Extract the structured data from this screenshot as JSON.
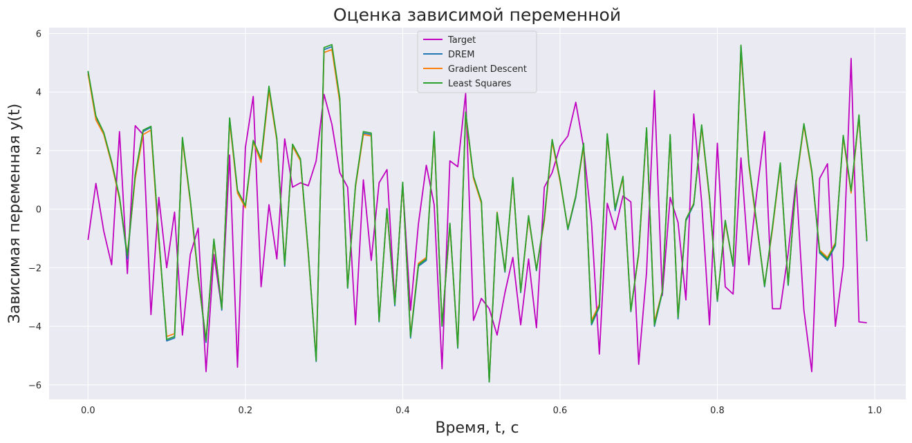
{
  "chart_data": {
    "type": "line",
    "title": "Оценка зависимой переменной",
    "xlabel": "Время, t, с",
    "ylabel": "Зависимая переменная y(t)",
    "xlim": [
      -0.0495,
      1.0395
    ],
    "ylim": [
      -6.5,
      6.2
    ],
    "xticks": [
      0.0,
      0.2,
      0.4,
      0.6,
      0.8,
      1.0
    ],
    "xtick_labels": [
      "0.0",
      "0.2",
      "0.4",
      "0.6",
      "0.8",
      "1.0"
    ],
    "yticks": [
      -6,
      -4,
      -2,
      0,
      2,
      4,
      6
    ],
    "ytick_labels": [
      "−6",
      "−4",
      "−2",
      "0",
      "2",
      "4",
      "6"
    ],
    "grid": true,
    "legend": "upper center",
    "x": [
      0.0,
      0.01,
      0.02,
      0.03,
      0.04,
      0.05,
      0.06,
      0.07,
      0.08,
      0.09,
      0.1,
      0.11,
      0.12,
      0.13,
      0.14,
      0.15,
      0.16,
      0.17,
      0.18,
      0.19,
      0.2,
      0.21,
      0.22,
      0.23,
      0.24,
      0.25,
      0.26,
      0.27,
      0.28,
      0.29,
      0.3,
      0.31,
      0.32,
      0.33,
      0.34,
      0.35,
      0.36,
      0.37,
      0.38,
      0.39,
      0.4,
      0.41,
      0.42,
      0.43,
      0.44,
      0.45,
      0.46,
      0.47,
      0.48,
      0.49,
      0.5,
      0.51,
      0.52,
      0.53,
      0.54,
      0.55,
      0.56,
      0.57,
      0.58,
      0.59,
      0.6,
      0.61,
      0.62,
      0.63,
      0.64,
      0.65,
      0.66,
      0.67,
      0.68,
      0.69,
      0.7,
      0.71,
      0.72,
      0.73,
      0.74,
      0.75,
      0.76,
      0.77,
      0.78,
      0.79,
      0.8,
      0.81,
      0.82,
      0.83,
      0.84,
      0.85,
      0.86,
      0.87,
      0.88,
      0.89,
      0.9,
      0.91,
      0.92,
      0.93,
      0.94,
      0.95,
      0.96,
      0.97,
      0.98,
      0.99
    ],
    "series": [
      {
        "name": "Target",
        "color": "#bf00bf",
        "values": [
          -1.05,
          0.88,
          -0.75,
          -1.9,
          2.65,
          -2.2,
          2.85,
          2.55,
          -3.6,
          0.4,
          -2.0,
          -0.1,
          -4.3,
          -1.55,
          -0.65,
          -5.55,
          -1.55,
          -3.4,
          1.85,
          -5.4,
          2.1,
          3.85,
          -2.65,
          0.15,
          -1.7,
          2.4,
          0.75,
          0.9,
          0.8,
          1.65,
          3.92,
          2.9,
          1.25,
          0.75,
          -3.95,
          1.0,
          -1.75,
          0.9,
          1.35,
          -3.2,
          0.85,
          -3.45,
          -0.5,
          1.5,
          0.15,
          -5.45,
          1.65,
          1.45,
          3.95,
          -3.8,
          -3.05,
          -3.4,
          -4.3,
          -2.85,
          -1.65,
          -3.95,
          -1.7,
          -4.05,
          0.75,
          1.25,
          2.15,
          2.5,
          3.65,
          2.1,
          -0.45,
          -4.95,
          0.2,
          -0.7,
          0.45,
          0.25,
          -5.3,
          -2.15,
          4.05,
          -2.95,
          0.4,
          -0.45,
          -3.1,
          3.25,
          0.25,
          -3.95,
          2.25,
          -2.65,
          -2.9,
          1.75,
          -1.9,
          0.55,
          2.65,
          -3.4,
          -3.4,
          -1.5,
          1.0,
          -3.45,
          -5.55,
          1.05,
          1.55,
          -4.0,
          -1.95,
          5.15,
          -3.85,
          -3.88
        ]
      },
      {
        "name": "DREM",
        "color": "#1f77b4",
        "values": [
          4.7,
          3.15,
          2.6,
          1.6,
          0.4,
          -1.7,
          1.15,
          2.65,
          2.8,
          -1.0,
          -4.5,
          -4.4,
          2.4,
          0.3,
          -2.3,
          -4.55,
          -1.05,
          -3.45,
          3.1,
          0.6,
          0.1,
          2.3,
          1.7,
          4.15,
          2.4,
          -1.95,
          2.2,
          1.7,
          -1.5,
          -5.2,
          5.45,
          5.55,
          3.75,
          -2.7,
          0.8,
          2.6,
          2.55,
          -3.85,
          0.0,
          -3.3,
          0.9,
          -4.4,
          -1.95,
          -1.75,
          2.6,
          -4.0,
          -0.5,
          -4.75,
          3.3,
          1.1,
          0.25,
          -5.9,
          -0.15,
          -2.15,
          1.05,
          -2.85,
          -0.25,
          -2.1,
          -0.35,
          2.35,
          1.0,
          -0.7,
          0.4,
          2.2,
          -3.95,
          -3.35,
          2.55,
          -0.05,
          1.1,
          -3.5,
          -1.5,
          2.75,
          -4.0,
          -2.85,
          2.5,
          -3.75,
          -0.4,
          0.15,
          2.85,
          0.4,
          -3.15,
          -0.4,
          -1.95,
          5.55,
          1.55,
          -0.5,
          -2.65,
          -0.65,
          1.55,
          -2.6,
          0.9,
          2.9,
          1.3,
          -1.5,
          -1.75,
          -1.25,
          2.5,
          0.6,
          3.2,
          -1.1
        ]
      },
      {
        "name": "Gradient Descent",
        "color": "#ff7f0e",
        "values": [
          4.62,
          3.05,
          2.55,
          1.55,
          0.35,
          -1.55,
          1.05,
          2.55,
          2.7,
          -1.1,
          -4.35,
          -4.25,
          2.35,
          0.25,
          -2.35,
          -4.45,
          -1.1,
          -3.35,
          3.0,
          0.55,
          0.05,
          2.3,
          1.6,
          4.05,
          2.35,
          -1.85,
          2.15,
          1.65,
          -1.55,
          -5.1,
          5.35,
          5.45,
          3.65,
          -2.65,
          0.75,
          2.55,
          2.5,
          -3.8,
          -0.05,
          -3.2,
          0.85,
          -4.3,
          -1.85,
          -1.65,
          2.55,
          -3.95,
          -0.55,
          -4.7,
          3.25,
          1.05,
          0.2,
          -5.85,
          -0.1,
          -2.1,
          1.0,
          -2.8,
          -0.3,
          -2.05,
          -0.4,
          2.3,
          0.95,
          -0.65,
          0.45,
          2.15,
          -3.8,
          -3.25,
          2.5,
          0.05,
          1.05,
          -3.45,
          -1.55,
          2.7,
          -3.85,
          -2.8,
          2.45,
          -3.65,
          -0.35,
          0.2,
          2.8,
          0.35,
          -3.1,
          -0.45,
          -1.9,
          5.45,
          1.5,
          -0.55,
          -2.6,
          -0.7,
          1.5,
          -2.55,
          0.85,
          2.85,
          1.25,
          -1.4,
          -1.65,
          -1.15,
          2.45,
          0.55,
          3.15,
          -1.05
        ]
      },
      {
        "name": "Least Squares",
        "color": "#2ca02c",
        "values": [
          4.72,
          3.18,
          2.62,
          1.62,
          0.42,
          -1.6,
          1.18,
          2.7,
          2.83,
          -0.95,
          -4.45,
          -4.35,
          2.45,
          0.32,
          -2.28,
          -4.5,
          -1.02,
          -3.4,
          3.12,
          0.65,
          0.12,
          2.35,
          1.72,
          4.2,
          2.42,
          -1.9,
          2.22,
          1.72,
          -1.48,
          -5.18,
          5.52,
          5.62,
          3.8,
          -2.68,
          0.82,
          2.65,
          2.6,
          -3.82,
          0.02,
          -3.25,
          0.92,
          -4.35,
          -1.9,
          -1.7,
          2.65,
          -3.98,
          -0.48,
          -4.72,
          3.32,
          1.12,
          0.27,
          -5.9,
          -0.12,
          -2.12,
          1.08,
          -2.82,
          -0.22,
          -2.08,
          -0.32,
          2.38,
          1.02,
          -0.68,
          0.45,
          2.25,
          -3.9,
          -3.3,
          2.58,
          0.02,
          1.12,
          -3.48,
          -1.48,
          2.78,
          -3.95,
          -2.82,
          2.55,
          -3.7,
          -0.35,
          0.18,
          2.88,
          0.42,
          -3.12,
          -0.38,
          -1.92,
          5.6,
          1.58,
          -0.48,
          -2.62,
          -0.62,
          1.58,
          -2.58,
          0.92,
          2.92,
          1.32,
          -1.45,
          -1.7,
          -1.2,
          2.52,
          0.62,
          3.22,
          -1.08
        ]
      }
    ]
  }
}
